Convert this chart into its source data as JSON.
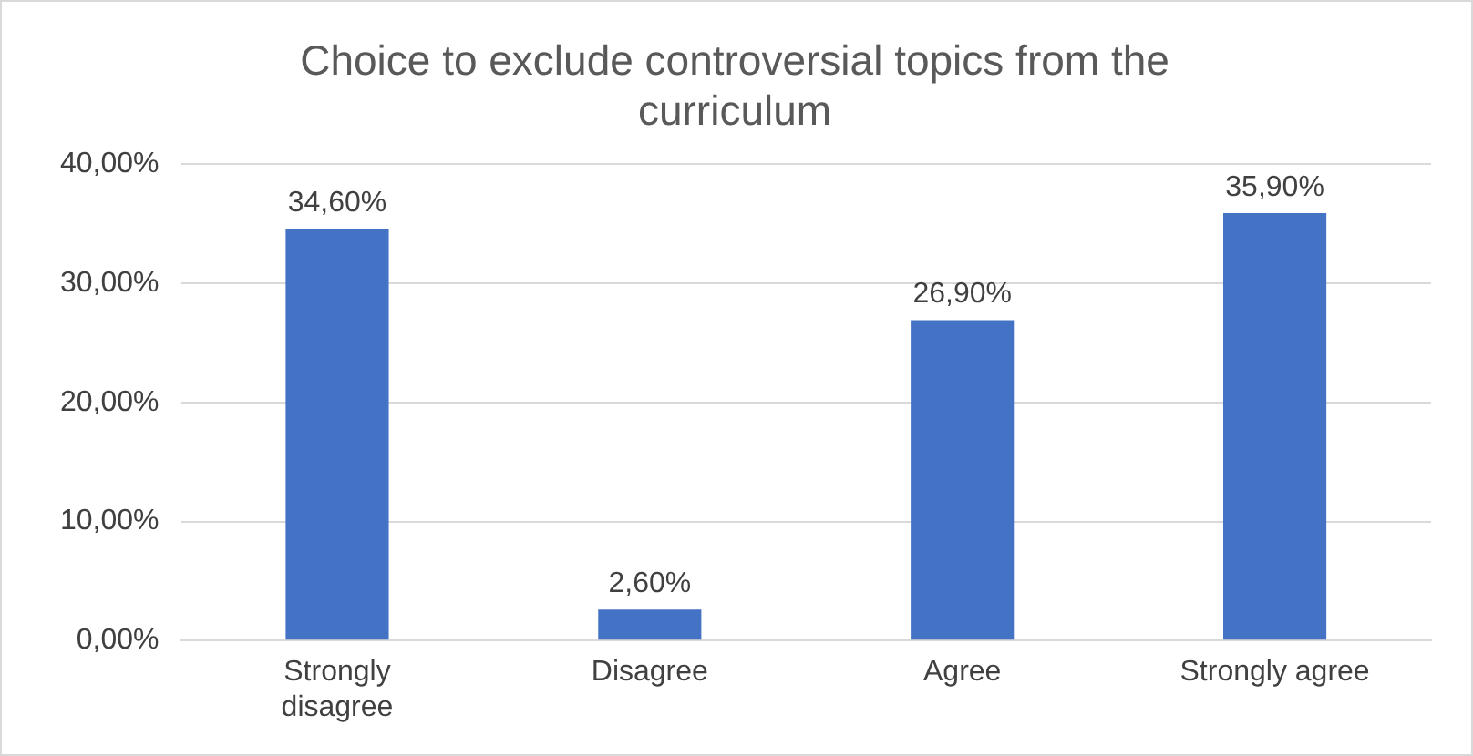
{
  "chart_data": {
    "type": "bar",
    "title": "Choice to exclude controversial topics from the curriculum",
    "categories": [
      "Strongly disagree",
      "Disagree",
      "Agree",
      "Strongly agree"
    ],
    "values": [
      34.6,
      2.6,
      26.9,
      35.9
    ],
    "value_labels": [
      "34,60%",
      "2,60%",
      "26,90%",
      "35,90%"
    ],
    "color": "#4472c4",
    "ylim": [
      0,
      40
    ],
    "yticks": [
      {
        "value": 0,
        "label": "0,00%"
      },
      {
        "value": 10,
        "label": "10,00%"
      },
      {
        "value": 20,
        "label": "20,00%"
      },
      {
        "value": 30,
        "label": "30,00%"
      },
      {
        "value": 40,
        "label": "40,00%"
      }
    ],
    "grid": "y",
    "legend": false
  }
}
